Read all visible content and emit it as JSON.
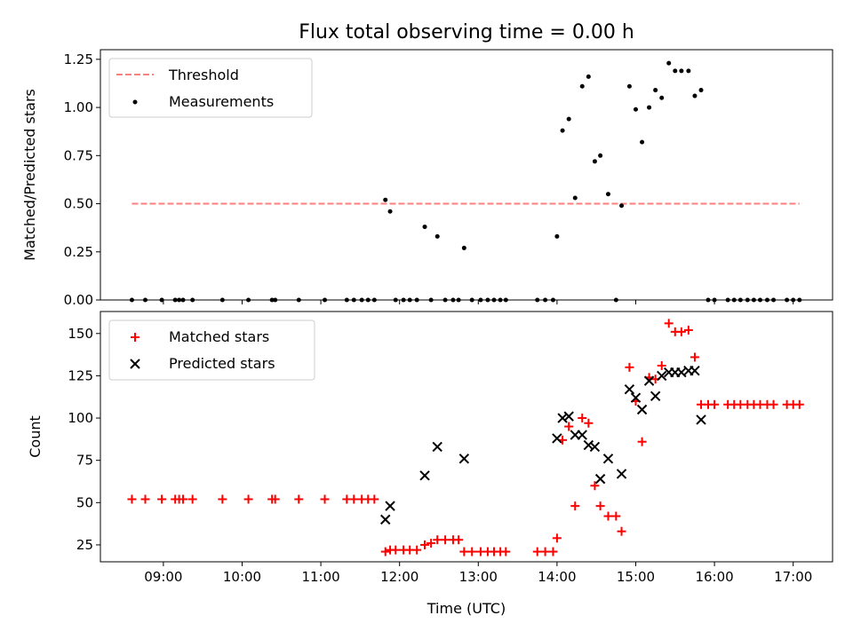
{
  "chart_data": [
    {
      "type": "scatter",
      "title": "Flux total observing time = 0.00 h",
      "xlabel": "",
      "ylabel": "Matched/Predicted stars",
      "xlim": [
        8.2,
        17.5
      ],
      "ylim": [
        0,
        1.3
      ],
      "yticks": [
        0.0,
        0.25,
        0.5,
        0.75,
        1.0,
        1.25
      ],
      "ytick_labels": [
        "0.00",
        "0.25",
        "0.50",
        "0.75",
        "1.00",
        "1.25"
      ],
      "legend_position": "top-left",
      "series": [
        {
          "name": "Threshold",
          "kind": "dashed-line",
          "color": "#ff7f7f",
          "x": [
            8.6,
            17.08
          ],
          "y": [
            0.5,
            0.5
          ]
        },
        {
          "name": "Measurements",
          "kind": "dot",
          "color": "#000000",
          "points": [
            [
              8.6,
              0
            ],
            [
              8.77,
              0
            ],
            [
              8.98,
              0
            ],
            [
              9.15,
              0
            ],
            [
              9.2,
              0
            ],
            [
              9.25,
              0
            ],
            [
              9.37,
              0
            ],
            [
              9.75,
              0
            ],
            [
              10.08,
              0
            ],
            [
              10.38,
              0
            ],
            [
              10.42,
              0
            ],
            [
              10.72,
              0
            ],
            [
              11.05,
              0
            ],
            [
              11.33,
              0
            ],
            [
              11.42,
              0
            ],
            [
              11.52,
              0
            ],
            [
              11.6,
              0
            ],
            [
              11.68,
              0
            ],
            [
              11.82,
              0.52
            ],
            [
              11.88,
              0.46
            ],
            [
              11.95,
              0
            ],
            [
              12.05,
              0
            ],
            [
              12.13,
              0
            ],
            [
              12.22,
              0
            ],
            [
              12.32,
              0.38
            ],
            [
              12.4,
              0
            ],
            [
              12.48,
              0.33
            ],
            [
              12.58,
              0
            ],
            [
              12.68,
              0
            ],
            [
              12.75,
              0
            ],
            [
              12.82,
              0.27
            ],
            [
              12.92,
              0
            ],
            [
              13.03,
              0
            ],
            [
              13.12,
              0
            ],
            [
              13.2,
              0
            ],
            [
              13.28,
              0
            ],
            [
              13.35,
              0
            ],
            [
              13.75,
              0
            ],
            [
              13.85,
              0
            ],
            [
              13.95,
              0
            ],
            [
              14.0,
              0.33
            ],
            [
              14.07,
              0.88
            ],
            [
              14.15,
              0.94
            ],
            [
              14.23,
              0.53
            ],
            [
              14.32,
              1.11
            ],
            [
              14.4,
              1.16
            ],
            [
              14.48,
              0.72
            ],
            [
              14.55,
              0.75
            ],
            [
              14.65,
              0.55
            ],
            [
              14.75,
              0
            ],
            [
              14.82,
              0.49
            ],
            [
              14.92,
              1.11
            ],
            [
              15.0,
              0.99
            ],
            [
              15.08,
              0.82
            ],
            [
              15.17,
              1.0
            ],
            [
              15.25,
              1.09
            ],
            [
              15.33,
              1.05
            ],
            [
              15.42,
              1.23
            ],
            [
              15.5,
              1.19
            ],
            [
              15.58,
              1.19
            ],
            [
              15.67,
              1.19
            ],
            [
              15.75,
              1.06
            ],
            [
              15.83,
              1.09
            ],
            [
              15.92,
              0
            ],
            [
              16.0,
              0
            ],
            [
              16.17,
              0
            ],
            [
              16.25,
              0
            ],
            [
              16.33,
              0
            ],
            [
              16.42,
              0
            ],
            [
              16.5,
              0
            ],
            [
              16.58,
              0
            ],
            [
              16.67,
              0
            ],
            [
              16.75,
              0
            ],
            [
              16.92,
              0
            ],
            [
              17.0,
              0
            ],
            [
              17.08,
              0
            ]
          ]
        }
      ]
    },
    {
      "type": "scatter",
      "title": "",
      "xlabel": "Time (UTC)",
      "ylabel": "Count",
      "xlim": [
        8.2,
        17.5
      ],
      "ylim": [
        15,
        163
      ],
      "xticks": [
        9,
        10,
        11,
        12,
        13,
        14,
        15,
        16,
        17
      ],
      "xtick_labels": [
        "09:00",
        "10:00",
        "11:00",
        "12:00",
        "13:00",
        "14:00",
        "15:00",
        "16:00",
        "17:00"
      ],
      "yticks": [
        25,
        50,
        75,
        100,
        125,
        150
      ],
      "ytick_labels": [
        "25",
        "50",
        "75",
        "100",
        "125",
        "150"
      ],
      "legend_position": "top-left",
      "series": [
        {
          "name": "Matched stars",
          "kind": "plus",
          "color": "#ff0000",
          "points": [
            [
              8.6,
              52
            ],
            [
              8.77,
              52
            ],
            [
              8.98,
              52
            ],
            [
              9.15,
              52
            ],
            [
              9.2,
              52
            ],
            [
              9.25,
              52
            ],
            [
              9.37,
              52
            ],
            [
              9.75,
              52
            ],
            [
              10.08,
              52
            ],
            [
              10.38,
              52
            ],
            [
              10.42,
              52
            ],
            [
              10.72,
              52
            ],
            [
              11.05,
              52
            ],
            [
              11.33,
              52
            ],
            [
              11.42,
              52
            ],
            [
              11.52,
              52
            ],
            [
              11.6,
              52
            ],
            [
              11.68,
              52
            ],
            [
              11.82,
              21
            ],
            [
              11.88,
              22
            ],
            [
              11.95,
              22
            ],
            [
              12.05,
              22
            ],
            [
              12.13,
              22
            ],
            [
              12.22,
              22
            ],
            [
              12.32,
              25
            ],
            [
              12.4,
              26
            ],
            [
              12.48,
              28
            ],
            [
              12.58,
              28
            ],
            [
              12.68,
              28
            ],
            [
              12.75,
              28
            ],
            [
              12.82,
              21
            ],
            [
              12.92,
              21
            ],
            [
              13.03,
              21
            ],
            [
              13.12,
              21
            ],
            [
              13.2,
              21
            ],
            [
              13.28,
              21
            ],
            [
              13.35,
              21
            ],
            [
              13.75,
              21
            ],
            [
              13.85,
              21
            ],
            [
              13.95,
              21
            ],
            [
              14.0,
              29
            ],
            [
              14.07,
              87
            ],
            [
              14.15,
              95
            ],
            [
              14.23,
              48
            ],
            [
              14.32,
              100
            ],
            [
              14.4,
              97
            ],
            [
              14.48,
              60
            ],
            [
              14.55,
              48
            ],
            [
              14.65,
              42
            ],
            [
              14.75,
              42
            ],
            [
              14.82,
              33
            ],
            [
              14.92,
              130
            ],
            [
              15.0,
              110
            ],
            [
              15.08,
              86
            ],
            [
              15.17,
              124
            ],
            [
              15.25,
              123
            ],
            [
              15.33,
              131
            ],
            [
              15.42,
              156
            ],
            [
              15.5,
              151
            ],
            [
              15.58,
              151
            ],
            [
              15.67,
              152
            ],
            [
              15.75,
              136
            ],
            [
              15.83,
              108
            ],
            [
              15.92,
              108
            ],
            [
              16.0,
              108
            ],
            [
              16.17,
              108
            ],
            [
              16.25,
              108
            ],
            [
              16.33,
              108
            ],
            [
              16.42,
              108
            ],
            [
              16.5,
              108
            ],
            [
              16.58,
              108
            ],
            [
              16.67,
              108
            ],
            [
              16.75,
              108
            ],
            [
              16.92,
              108
            ],
            [
              17.0,
              108
            ],
            [
              17.08,
              108
            ]
          ]
        },
        {
          "name": "Predicted stars",
          "kind": "cross",
          "color": "#000000",
          "points": [
            [
              11.82,
              40
            ],
            [
              11.88,
              48
            ],
            [
              12.32,
              66
            ],
            [
              12.48,
              83
            ],
            [
              12.82,
              76
            ],
            [
              14.0,
              88
            ],
            [
              14.07,
              100
            ],
            [
              14.15,
              101
            ],
            [
              14.23,
              90
            ],
            [
              14.32,
              90
            ],
            [
              14.4,
              84
            ],
            [
              14.48,
              83
            ],
            [
              14.55,
              64
            ],
            [
              14.65,
              76
            ],
            [
              14.82,
              67
            ],
            [
              14.92,
              117
            ],
            [
              15.0,
              112
            ],
            [
              15.08,
              105
            ],
            [
              15.17,
              122
            ],
            [
              15.25,
              113
            ],
            [
              15.33,
              125
            ],
            [
              15.42,
              127
            ],
            [
              15.5,
              127
            ],
            [
              15.58,
              127
            ],
            [
              15.67,
              128
            ],
            [
              15.75,
              128
            ],
            [
              15.83,
              99
            ]
          ]
        }
      ]
    }
  ]
}
